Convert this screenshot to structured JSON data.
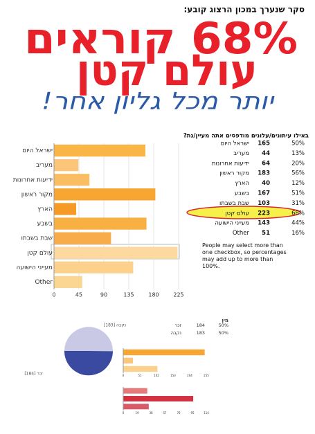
{
  "header": {
    "survey_line": "סקר שנערך במכון הרצוג קובע:",
    "headline": [
      "68% קוראים",
      "עולם קטן"
    ],
    "slogan": "יותר מכל גליון אחר!"
  },
  "chart_data": [
    {
      "type": "bar",
      "orientation": "horizontal",
      "categories": [
        "ישראל היום",
        "מעריב",
        "ידיעות אחרונות",
        "מקור ראשון",
        "הארץ",
        "בשבע",
        "שבת בשבתו",
        "עולם קטן",
        "מעייני הישועה",
        "Other"
      ],
      "values": [
        165,
        44,
        64,
        183,
        40,
        167,
        103,
        223,
        143,
        51
      ],
      "colors": [
        "#f9b647",
        "#fbc57a",
        "#fbbd62",
        "#f7a631",
        "#f59a27",
        "#f8b043",
        "#f8ad4a",
        "#fdd9a0",
        "#fbd18c",
        "#fbd592"
      ],
      "xlim": [
        0,
        225
      ],
      "xticks": [
        0,
        45,
        90,
        135,
        180,
        225
      ],
      "grid": true,
      "highlight": "עולם קטן"
    },
    {
      "type": "pie",
      "title": "מין",
      "categories": [
        "זכר",
        "נקבה"
      ],
      "values": [
        184,
        183
      ],
      "colors": [
        "#3a4aa0",
        "#c9c9e6"
      ],
      "slice_labels": [
        "זכר [184]",
        "נקבה [183]"
      ],
      "percent_labels": [
        "50%",
        "50%"
      ]
    },
    {
      "type": "bar",
      "orientation": "horizontal",
      "categories": [
        null,
        null,
        null
      ],
      "values": [
        250,
        30,
        105
      ],
      "colors": [
        "#f7a631",
        "#fbc57a",
        "#fbd18c"
      ],
      "xlim": [
        0,
        255
      ],
      "xticks": [
        0,
        51,
        102,
        153,
        204,
        255
      ]
    },
    {
      "type": "bar",
      "orientation": "horizontal",
      "categories": [
        null,
        null,
        null
      ],
      "values": [
        33,
        96,
        35
      ],
      "colors": [
        "#e67a7a",
        "#d2313f",
        "#d85a66"
      ],
      "xlim": [
        0,
        114
      ],
      "xticks": [
        0,
        19,
        38,
        57,
        76,
        95,
        114
      ]
    }
  ],
  "table": {
    "title": "באילו עיתונים/עלונים מודפסים אתה מעיין/נת?",
    "rows": [
      [
        "ישראל היום",
        "165",
        "50%"
      ],
      [
        "מעריב",
        "44",
        "13%"
      ],
      [
        "ידיעות אחרונות",
        "64",
        "20%"
      ],
      [
        "מקור ראשון",
        "183",
        "56%"
      ],
      [
        "הארץ",
        "40",
        "12%"
      ],
      [
        "בשבע",
        "167",
        "51%"
      ],
      [
        "שבת בשבתו",
        "103",
        "31%"
      ],
      [
        "עולם קטן",
        "223",
        "68%"
      ],
      [
        "מעייני הישועה",
        "143",
        "44%"
      ],
      [
        "Other",
        "51",
        "16%"
      ]
    ],
    "note": "People may select more than one checkbox, so percentages may add up to more than 100%."
  }
}
